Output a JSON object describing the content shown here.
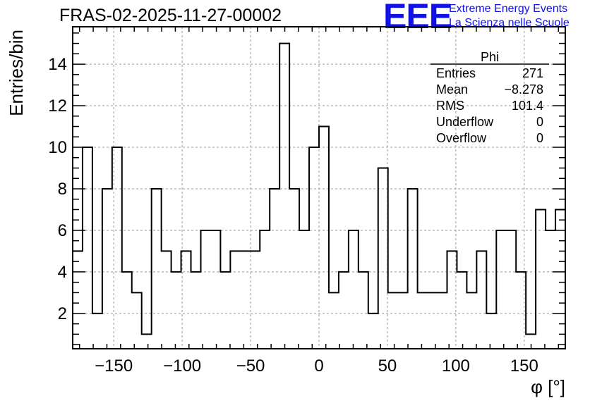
{
  "chart_data": {
    "type": "bar",
    "title": "FRAS-02-2025-11-27-00002",
    "xlabel": "φ [°]",
    "ylabel": "Entries/bin",
    "xlim": [
      -180,
      180
    ],
    "ylim": [
      0.3,
      15.8
    ],
    "bin_width": 7.2,
    "x_ticks": [
      -150,
      -100,
      -50,
      0,
      50,
      100,
      150
    ],
    "x_tick_labels": [
      "−150",
      "−100",
      "−50",
      "0",
      "50",
      "100",
      "150"
    ],
    "y_ticks": [
      2,
      4,
      6,
      8,
      10,
      12,
      14
    ],
    "y_tick_labels": [
      "2",
      "4",
      "6",
      "8",
      "10",
      "12",
      "14"
    ],
    "grid": true,
    "values": [
      5,
      10,
      2,
      8,
      10,
      4,
      3,
      1,
      8,
      5,
      4,
      5,
      4,
      6,
      6,
      4,
      5,
      5,
      5,
      6,
      8,
      15,
      8,
      6,
      10,
      11,
      3,
      4,
      6,
      4,
      2,
      9,
      3,
      3,
      8,
      3,
      3,
      3,
      5,
      4,
      3,
      5,
      2,
      6,
      6,
      4,
      1,
      7,
      6,
      7
    ]
  },
  "logo": {
    "text": "EEE",
    "line1": "Extreme Energy Events",
    "line2": "La Scienza nelle Scuole"
  },
  "stats": {
    "title": "Phi",
    "rows": [
      {
        "label": "Entries",
        "value": "271"
      },
      {
        "label": "Mean",
        "value": "−8.278"
      },
      {
        "label": "RMS",
        "value": "101.4"
      },
      {
        "label": "Underflow",
        "value": "0"
      },
      {
        "label": "Overflow",
        "value": "0"
      }
    ]
  },
  "colors": {
    "logo": "#1010e8",
    "line": "#000000",
    "grid": "#999999"
  }
}
